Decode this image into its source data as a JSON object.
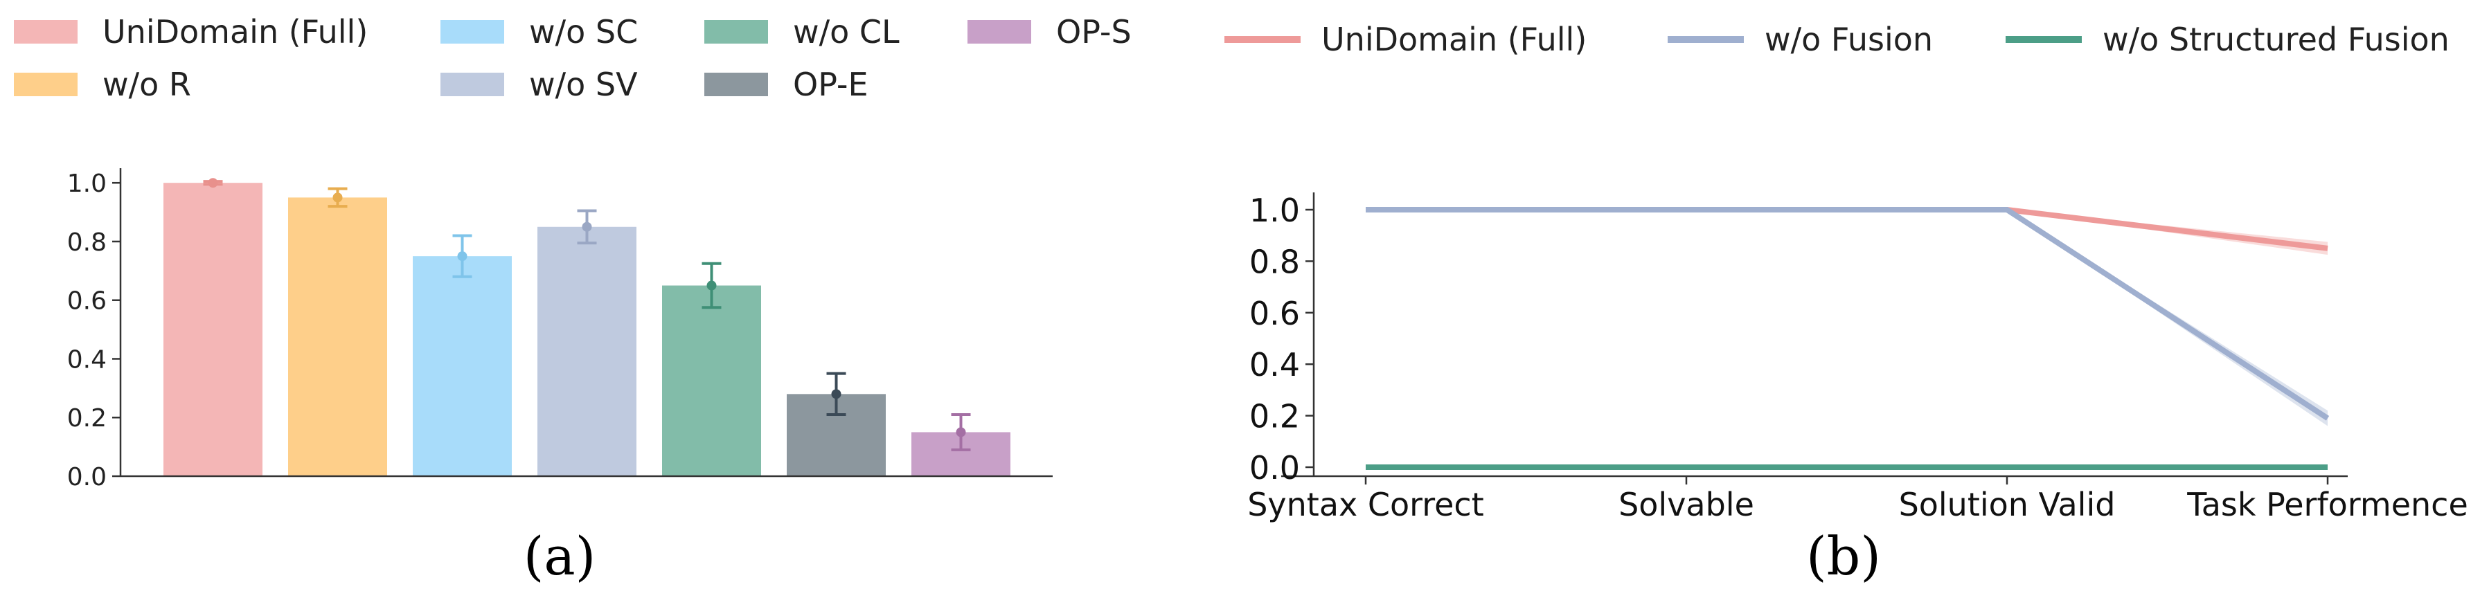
{
  "legend_a": [
    {
      "label": "UniDomain (Full)",
      "color": "#f4b6b6"
    },
    {
      "label": "w/o R",
      "color": "#fecf8a"
    },
    {
      "label": "w/o SC",
      "color": "#a8dcfa"
    },
    {
      "label": "w/o SV",
      "color": "#bfcadf"
    },
    {
      "label": "w/o CL",
      "color": "#82bca9"
    },
    {
      "label": "OP-E",
      "color": "#8c979e"
    },
    {
      "label": "OP-S",
      "color": "#c8a0c8"
    }
  ],
  "legend_b": [
    {
      "label": "UniDomain (Full)",
      "color": "#ee9a99"
    },
    {
      "label": "w/o Fusion",
      "color": "#9fafcf"
    },
    {
      "label": "w/o Structured Fusion",
      "color": "#4c9e87"
    }
  ],
  "captions": {
    "a": "(a)",
    "b": "(b)"
  },
  "chart_data": [
    {
      "type": "bar",
      "caption": "(a)",
      "categories": [
        "UniDomain (Full)",
        "w/o R",
        "w/o SC",
        "w/o SV",
        "w/o CL",
        "OP-E",
        "OP-S"
      ],
      "values": [
        1.0,
        0.95,
        0.75,
        0.85,
        0.65,
        0.28,
        0.15
      ],
      "errors": [
        0.005,
        0.03,
        0.07,
        0.055,
        0.075,
        0.07,
        0.06
      ],
      "bar_colors": [
        "#f4b6b6",
        "#fecf8a",
        "#a8dcfa",
        "#bfcadf",
        "#82bca9",
        "#8c979e",
        "#c8a0c8"
      ],
      "error_colors": [
        "#e8908c",
        "#e8ad4f",
        "#7fc4ea",
        "#9aa7c4",
        "#3f8f76",
        "#3b4a57",
        "#a46fa4"
      ],
      "ylim": [
        0,
        1.05
      ],
      "yticks": [
        "0.0",
        "0.2",
        "0.4",
        "0.6",
        "0.8",
        "1.0"
      ],
      "xlabel": "",
      "ylabel": "",
      "grid": false
    },
    {
      "type": "line",
      "caption": "(b)",
      "x": [
        "Syntax Correct",
        "Solvable",
        "Solution Valid",
        "Task Performence"
      ],
      "series": [
        {
          "name": "UniDomain (Full)",
          "values": [
            1.0,
            1.0,
            1.0,
            0.85
          ],
          "band": [
            0.0,
            0.0,
            0.0,
            0.025
          ],
          "color": "#ee9a99"
        },
        {
          "name": "w/o Fusion",
          "values": [
            1.0,
            1.0,
            1.0,
            0.19
          ],
          "band": [
            0.0,
            0.0,
            0.0,
            0.03
          ],
          "color": "#9fafcf"
        },
        {
          "name": "w/o Structured Fusion",
          "values": [
            0.0,
            0.0,
            0.0,
            0.0
          ],
          "band": [
            0.0,
            0.0,
            0.0,
            0.0
          ],
          "color": "#4c9e87"
        }
      ],
      "ylim": [
        -0.05,
        1.05
      ],
      "yticks": [
        "0.0",
        "0.2",
        "0.4",
        "0.6",
        "0.8",
        "1.0"
      ],
      "xlabel": "",
      "ylabel": "",
      "grid": false
    }
  ]
}
